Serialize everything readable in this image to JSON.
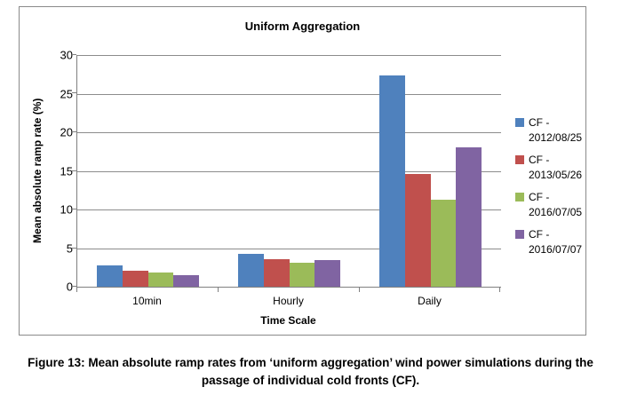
{
  "chart_data": {
    "type": "bar",
    "title": "Uniform Aggregation",
    "categories": [
      "10min",
      "Hourly",
      "Daily"
    ],
    "series": [
      {
        "name": "CF - 2012/08/25",
        "color": "#4F81BD",
        "values": [
          2.8,
          4.3,
          27.4
        ]
      },
      {
        "name": "CF - 2013/05/26",
        "color": "#C0504D",
        "values": [
          2.1,
          3.6,
          14.6
        ]
      },
      {
        "name": "CF - 2016/07/05",
        "color": "#9BBB59",
        "values": [
          1.8,
          3.1,
          11.3
        ]
      },
      {
        "name": "CF - 2016/07/07",
        "color": "#8064A2",
        "values": [
          1.5,
          3.4,
          18.0
        ]
      }
    ],
    "xlabel": "Time Scale",
    "ylabel": "Mean absolute ramp rate (%)",
    "ylim": [
      0,
      30
    ],
    "yticks": [
      0,
      5,
      10,
      15,
      20,
      25,
      30
    ],
    "grid": "horizontal",
    "legend_position": "right"
  },
  "caption": {
    "line1": "Figure 13: Mean absolute ramp rates from ‘uniform aggregation’ wind power simulations during the",
    "line2": "passage of individual cold fronts (CF)."
  },
  "colors": {
    "frame_border": "#8A8A8A",
    "gridline": "#8C8C8C",
    "axis": "#808080",
    "text": "#000000"
  }
}
